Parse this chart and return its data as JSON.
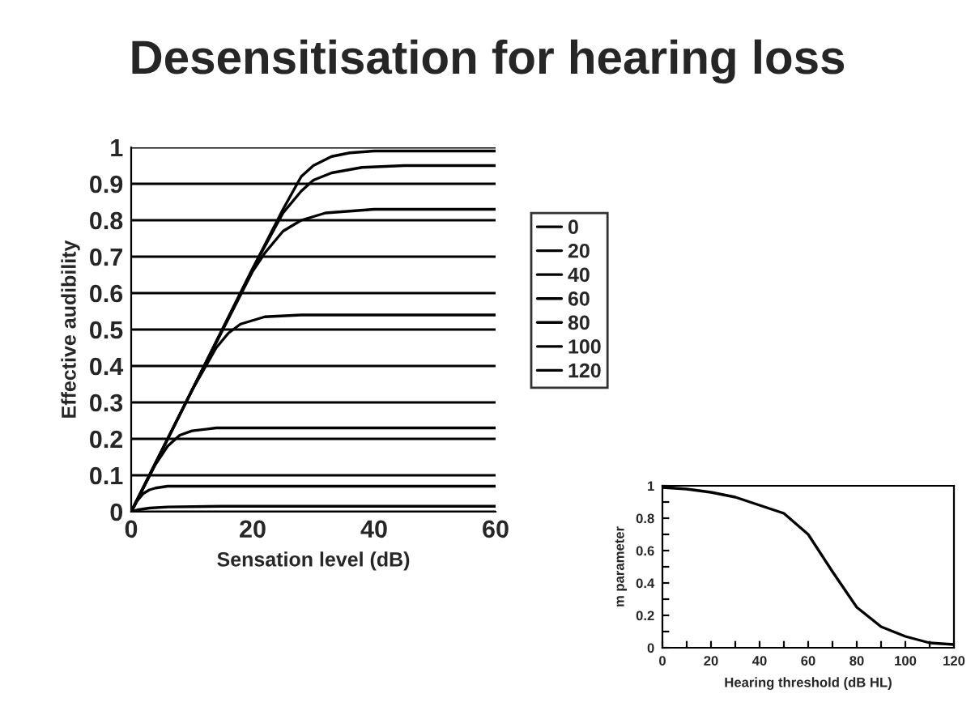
{
  "chart_data": [
    {
      "type": "line",
      "title": "Desensitisation for hearing loss",
      "xlabel": "Sensation level (dB)",
      "ylabel": "Effective audibility",
      "xlim": [
        0,
        60
      ],
      "xticks": [
        0,
        20,
        40,
        60
      ],
      "ylim": [
        0,
        1
      ],
      "yticks": [
        0,
        0.1,
        0.2,
        0.3,
        0.4,
        0.5,
        0.6,
        0.7,
        0.8,
        0.9,
        1
      ],
      "grid": "y",
      "legend": "right",
      "marker": "none",
      "line_style": "solid",
      "series": [
        {
          "name": "0",
          "color": "#000000",
          "x": [
            0,
            10,
            20,
            25,
            28,
            30,
            33,
            36,
            40,
            50,
            60
          ],
          "values": [
            0,
            0.333,
            0.667,
            0.83,
            0.92,
            0.95,
            0.975,
            0.985,
            0.99,
            0.99,
            0.99
          ]
        },
        {
          "name": "20",
          "color": "#000000",
          "x": [
            0,
            10,
            20,
            25,
            28,
            30,
            33,
            38,
            45,
            60
          ],
          "values": [
            0,
            0.333,
            0.667,
            0.82,
            0.88,
            0.91,
            0.93,
            0.945,
            0.95,
            0.95
          ]
        },
        {
          "name": "40",
          "color": "#000000",
          "x": [
            0,
            10,
            20,
            22,
            25,
            28,
            32,
            40,
            60
          ],
          "values": [
            0,
            0.333,
            0.66,
            0.71,
            0.77,
            0.8,
            0.82,
            0.83,
            0.83
          ]
        },
        {
          "name": "60",
          "color": "#000000",
          "x": [
            0,
            10,
            14,
            16,
            18,
            22,
            28,
            60
          ],
          "values": [
            0,
            0.333,
            0.45,
            0.49,
            0.515,
            0.535,
            0.54,
            0.54
          ]
        },
        {
          "name": "80",
          "color": "#000000",
          "x": [
            0,
            4,
            6,
            8,
            10,
            14,
            20,
            60
          ],
          "values": [
            0,
            0.13,
            0.18,
            0.21,
            0.222,
            0.23,
            0.23,
            0.23
          ]
        },
        {
          "name": "100",
          "color": "#000000",
          "x": [
            0,
            1,
            2,
            3,
            4,
            6,
            10,
            60
          ],
          "values": [
            0,
            0.03,
            0.05,
            0.06,
            0.065,
            0.07,
            0.07,
            0.07
          ]
        },
        {
          "name": "120",
          "color": "#000000",
          "x": [
            0,
            1,
            3,
            6,
            15,
            60
          ],
          "values": [
            0,
            0.005,
            0.01,
            0.013,
            0.015,
            0.015
          ]
        }
      ]
    },
    {
      "type": "line",
      "xlabel": "Hearing threshold (dB HL)",
      "ylabel": "m parameter",
      "xlim": [
        0,
        120
      ],
      "xticks": [
        0,
        {
          "value": 10,
          "label": null
        },
        20,
        {
          "value": 30,
          "label": null
        },
        40,
        {
          "value": 50,
          "label": null
        },
        60,
        {
          "value": 70,
          "label": null
        },
        80,
        {
          "value": 90,
          "label": null
        },
        100,
        {
          "value": 110,
          "label": null
        },
        120
      ],
      "ylim": [
        0,
        1
      ],
      "yticks": [
        0,
        {
          "value": 0.1,
          "label": null
        },
        0.2,
        {
          "value": 0.3,
          "label": null
        },
        0.4,
        {
          "value": 0.5,
          "label": null
        },
        0.6,
        {
          "value": 0.7,
          "label": null
        },
        0.8,
        {
          "value": 0.9,
          "label": null
        },
        1
      ],
      "marker": "none",
      "line_style": "solid",
      "series": [
        {
          "color": "#000000",
          "x": [
            0,
            10,
            20,
            30,
            40,
            50,
            60,
            70,
            80,
            90,
            100,
            110,
            120
          ],
          "values": [
            0.99,
            0.98,
            0.96,
            0.93,
            0.88,
            0.83,
            0.7,
            0.47,
            0.25,
            0.13,
            0.07,
            0.03,
            0.02
          ]
        }
      ]
    }
  ]
}
